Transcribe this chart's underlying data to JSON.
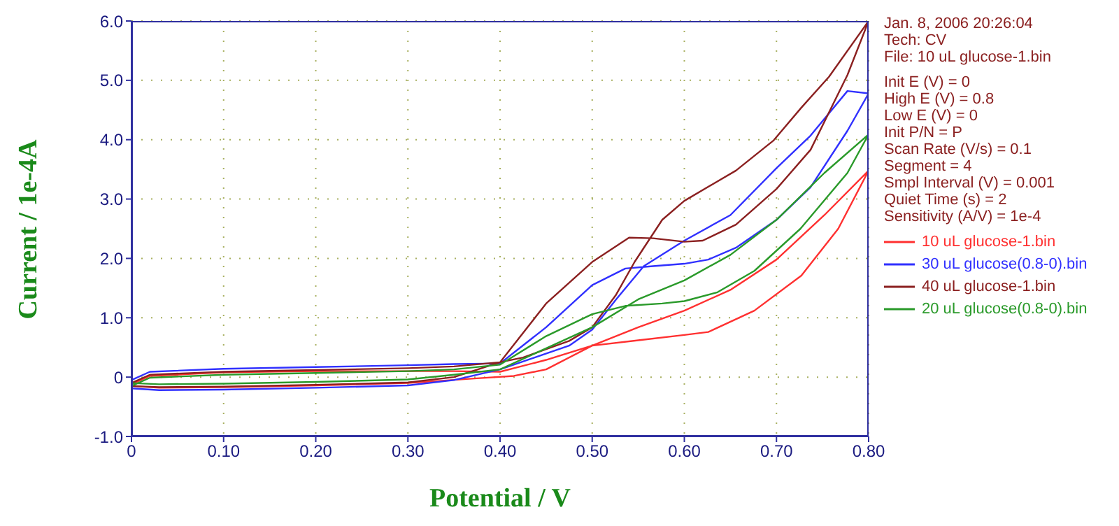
{
  "chart_data": {
    "type": "line",
    "xlabel": "Potential / V",
    "ylabel": "Current / 1e-4A",
    "annotations": [
      "Jan. 8, 2006   20:26:04",
      "Tech: CV",
      "File: 10 uL glucose-1.bin",
      "Init E (V) = 0",
      "High E (V) = 0.8",
      "Low E (V) = 0",
      "Init P/N = P",
      "Scan Rate (V/s) = 0.1",
      "Segment = 4",
      "Smpl Interval (V) = 0.001",
      "Quiet Time (s) = 2",
      "Sensitivity (A/V) = 1e-4"
    ],
    "xlim": [
      0,
      0.8
    ],
    "ylim": [
      -1,
      6
    ],
    "xticks": [
      0,
      {
        "value": 0.1,
        "label": "0.10"
      },
      {
        "value": 0.2,
        "label": "0.20"
      },
      {
        "value": 0.3,
        "label": "0.30"
      },
      {
        "value": 0.4,
        "label": "0.40"
      },
      {
        "value": 0.5,
        "label": "0.50"
      },
      {
        "value": 0.6,
        "label": "0.60"
      },
      {
        "value": 0.7,
        "label": "0.70"
      },
      {
        "value": 0.8,
        "label": "0.80"
      }
    ],
    "yticks": [
      {
        "value": -1,
        "label": "-1.0"
      },
      0,
      {
        "value": 1,
        "label": "1.0"
      },
      {
        "value": 2,
        "label": "2.0"
      },
      {
        "value": 3,
        "label": "3.0"
      },
      {
        "value": 4,
        "label": "4.0"
      },
      {
        "value": 5,
        "label": "5.0"
      },
      {
        "value": 6,
        "label": "6.0"
      }
    ],
    "grid": true,
    "legend": "right",
    "marker": "none",
    "line_style": "solid",
    "series": [
      {
        "name": "10 uL glucose-1.bin",
        "color": "#ff3030",
        "x": [
          0,
          0.02,
          0.1,
          0.2,
          0.3,
          0.35,
          0.4,
          0.45,
          0.5,
          0.55,
          0.6,
          0.65,
          0.7,
          0.752,
          0.8,
          0.767,
          0.727,
          0.676,
          0.626,
          0.6,
          0.55,
          0.5,
          0.45,
          0.415,
          0.375,
          0.3,
          0.2,
          0.1,
          0.03,
          0
        ],
        "values": [
          -0.12,
          0.02,
          0.08,
          0.1,
          0.1,
          0.1,
          0.09,
          0.29,
          0.53,
          0.84,
          1.12,
          1.47,
          1.98,
          2.73,
          3.48,
          2.5,
          1.71,
          1.12,
          0.76,
          0.71,
          0.62,
          0.53,
          0.13,
          0.02,
          -0.02,
          -0.1,
          -0.14,
          -0.17,
          -0.18,
          -0.15
        ]
      },
      {
        "name": "30 uL glucose(0.8-0).bin",
        "color": "#3030ff",
        "x": [
          0,
          0.02,
          0.1,
          0.2,
          0.3,
          0.35,
          0.4,
          0.45,
          0.5,
          0.536,
          0.566,
          0.6,
          0.626,
          0.656,
          0.7,
          0.737,
          0.777,
          0.8,
          0.777,
          0.737,
          0.7,
          0.65,
          0.6,
          0.556,
          0.526,
          0.5,
          0.475,
          0.4,
          0.35,
          0.3,
          0.2,
          0.1,
          0.03,
          0
        ],
        "values": [
          -0.05,
          0.09,
          0.14,
          0.17,
          0.2,
          0.22,
          0.23,
          0.84,
          1.55,
          1.83,
          1.87,
          1.91,
          1.98,
          2.18,
          2.65,
          3.2,
          4.15,
          4.78,
          4.82,
          4.07,
          3.52,
          2.73,
          2.3,
          1.87,
          1.31,
          0.8,
          0.53,
          0.13,
          -0.05,
          -0.14,
          -0.18,
          -0.21,
          -0.22,
          -0.19
        ]
      },
      {
        "name": "40 uL glucose-1.bin",
        "color": "#8b2020",
        "x": [
          0,
          0.02,
          0.1,
          0.2,
          0.3,
          0.35,
          0.4,
          0.45,
          0.5,
          0.54,
          0.566,
          0.6,
          0.62,
          0.656,
          0.7,
          0.737,
          0.777,
          0.8,
          0.757,
          0.727,
          0.697,
          0.656,
          0.6,
          0.576,
          0.546,
          0.526,
          0.5,
          0.475,
          0.425,
          0.4,
          0.35,
          0.3,
          0.2,
          0.1,
          0.03,
          0
        ],
        "values": [
          -0.1,
          0.04,
          0.09,
          0.12,
          0.15,
          0.18,
          0.25,
          1.24,
          1.94,
          2.35,
          2.34,
          2.28,
          2.3,
          2.57,
          3.17,
          3.83,
          5.09,
          6.0,
          5.06,
          4.54,
          3.99,
          3.48,
          2.97,
          2.65,
          1.94,
          1.39,
          0.84,
          0.61,
          0.33,
          0.25,
          0,
          -0.09,
          -0.13,
          -0.16,
          -0.17,
          -0.15
        ]
      },
      {
        "name": "20 uL glucose(0.8-0).bin",
        "color": "#2a9a2a",
        "x": [
          0,
          0.02,
          0.1,
          0.2,
          0.3,
          0.35,
          0.4,
          0.45,
          0.5,
          0.536,
          0.576,
          0.6,
          0.636,
          0.676,
          0.726,
          0.777,
          0.8,
          0.752,
          0.7,
          0.65,
          0.6,
          0.55,
          0.5,
          0.4,
          0.35,
          0.3,
          0.2,
          0.1,
          0.03,
          0
        ],
        "values": [
          -0.15,
          -0.01,
          0.04,
          0.07,
          0.1,
          0.13,
          0.21,
          0.69,
          1.06,
          1.2,
          1.24,
          1.28,
          1.43,
          1.79,
          2.5,
          3.44,
          4.09,
          3.44,
          2.65,
          2.06,
          1.63,
          1.31,
          0.84,
          0.13,
          0.04,
          -0.04,
          -0.08,
          -0.11,
          -0.12,
          -0.1
        ]
      }
    ]
  }
}
